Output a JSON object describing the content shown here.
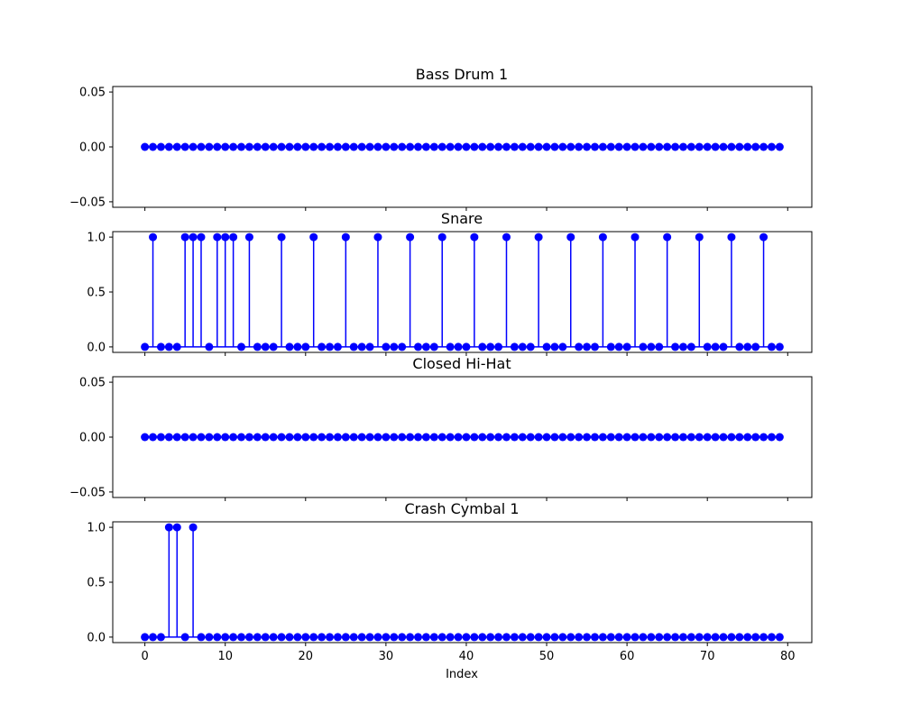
{
  "chart_data": {
    "type": "stem",
    "xlabel": "Index",
    "xlim": [
      -4,
      83
    ],
    "x_ticks": [
      0,
      10,
      20,
      30,
      40,
      50,
      60,
      70,
      80
    ],
    "x": [
      0,
      1,
      2,
      3,
      4,
      5,
      6,
      7,
      8,
      9,
      10,
      11,
      12,
      13,
      14,
      15,
      16,
      17,
      18,
      19,
      20,
      21,
      22,
      23,
      24,
      25,
      26,
      27,
      28,
      29,
      30,
      31,
      32,
      33,
      34,
      35,
      36,
      37,
      38,
      39,
      40,
      41,
      42,
      43,
      44,
      45,
      46,
      47,
      48,
      49,
      50,
      51,
      52,
      53,
      54,
      55,
      56,
      57,
      58,
      59,
      60,
      61,
      62,
      63,
      64,
      65,
      66,
      67,
      68,
      69,
      70,
      71,
      72,
      73,
      74,
      75,
      76,
      77,
      78,
      79
    ],
    "color": "#0000ff",
    "panels": [
      {
        "title": "Bass Drum 1",
        "ylim": [
          -0.055,
          0.055
        ],
        "y_ticks": [
          -0.05,
          0.0,
          0.05
        ],
        "y_tick_labels": [
          "−0.05",
          "0.00",
          "0.05"
        ],
        "values": [
          0,
          0,
          0,
          0,
          0,
          0,
          0,
          0,
          0,
          0,
          0,
          0,
          0,
          0,
          0,
          0,
          0,
          0,
          0,
          0,
          0,
          0,
          0,
          0,
          0,
          0,
          0,
          0,
          0,
          0,
          0,
          0,
          0,
          0,
          0,
          0,
          0,
          0,
          0,
          0,
          0,
          0,
          0,
          0,
          0,
          0,
          0,
          0,
          0,
          0,
          0,
          0,
          0,
          0,
          0,
          0,
          0,
          0,
          0,
          0,
          0,
          0,
          0,
          0,
          0,
          0,
          0,
          0,
          0,
          0,
          0,
          0,
          0,
          0,
          0,
          0,
          0,
          0,
          0,
          0
        ]
      },
      {
        "title": "Snare",
        "ylim": [
          -0.05,
          1.05
        ],
        "y_ticks": [
          0.0,
          0.5,
          1.0
        ],
        "y_tick_labels": [
          "0.0",
          "0.5",
          "1.0"
        ],
        "values": [
          0,
          1,
          0,
          0,
          0,
          1,
          1,
          1,
          0,
          1,
          1,
          1,
          0,
          1,
          0,
          0,
          0,
          1,
          0,
          0,
          0,
          1,
          0,
          0,
          0,
          1,
          0,
          0,
          0,
          1,
          0,
          0,
          0,
          1,
          0,
          0,
          0,
          1,
          0,
          0,
          0,
          1,
          0,
          0,
          0,
          1,
          0,
          0,
          0,
          1,
          0,
          0,
          0,
          1,
          0,
          0,
          0,
          1,
          0,
          0,
          0,
          1,
          0,
          0,
          0,
          1,
          0,
          0,
          0,
          1,
          0,
          0,
          0,
          1,
          0,
          0,
          0,
          1,
          0,
          0
        ]
      },
      {
        "title": "Closed Hi-Hat",
        "ylim": [
          -0.055,
          0.055
        ],
        "y_ticks": [
          -0.05,
          0.0,
          0.05
        ],
        "y_tick_labels": [
          "−0.05",
          "0.00",
          "0.05"
        ],
        "values": [
          0,
          0,
          0,
          0,
          0,
          0,
          0,
          0,
          0,
          0,
          0,
          0,
          0,
          0,
          0,
          0,
          0,
          0,
          0,
          0,
          0,
          0,
          0,
          0,
          0,
          0,
          0,
          0,
          0,
          0,
          0,
          0,
          0,
          0,
          0,
          0,
          0,
          0,
          0,
          0,
          0,
          0,
          0,
          0,
          0,
          0,
          0,
          0,
          0,
          0,
          0,
          0,
          0,
          0,
          0,
          0,
          0,
          0,
          0,
          0,
          0,
          0,
          0,
          0,
          0,
          0,
          0,
          0,
          0,
          0,
          0,
          0,
          0,
          0,
          0,
          0,
          0,
          0,
          0,
          0
        ]
      },
      {
        "title": "Crash Cymbal 1",
        "ylim": [
          -0.05,
          1.05
        ],
        "y_ticks": [
          0.0,
          0.5,
          1.0
        ],
        "y_tick_labels": [
          "0.0",
          "0.5",
          "1.0"
        ],
        "values": [
          0,
          0,
          0,
          1,
          1,
          0,
          1,
          0,
          0,
          0,
          0,
          0,
          0,
          0,
          0,
          0,
          0,
          0,
          0,
          0,
          0,
          0,
          0,
          0,
          0,
          0,
          0,
          0,
          0,
          0,
          0,
          0,
          0,
          0,
          0,
          0,
          0,
          0,
          0,
          0,
          0,
          0,
          0,
          0,
          0,
          0,
          0,
          0,
          0,
          0,
          0,
          0,
          0,
          0,
          0,
          0,
          0,
          0,
          0,
          0,
          0,
          0,
          0,
          0,
          0,
          0,
          0,
          0,
          0,
          0,
          0,
          0,
          0,
          0,
          0,
          0,
          0,
          0,
          0,
          0
        ]
      }
    ]
  }
}
